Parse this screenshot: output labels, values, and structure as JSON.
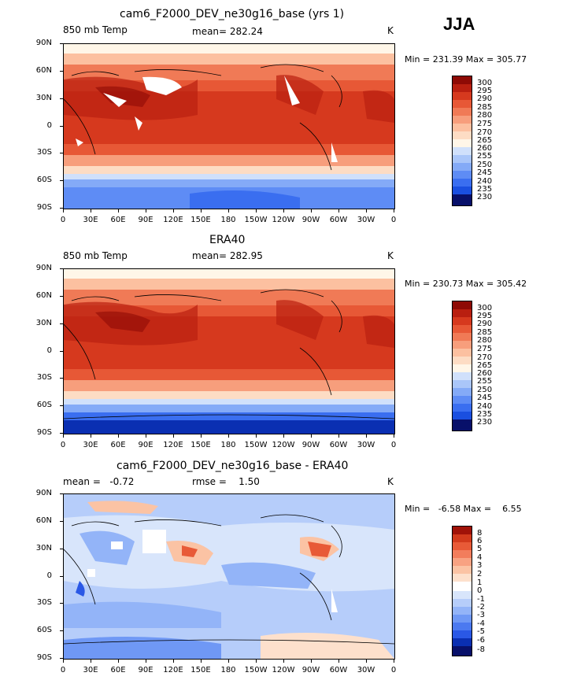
{
  "season": "JJA",
  "x_ticks": [
    "0",
    "30E",
    "60E",
    "90E",
    "120E",
    "150E",
    "180",
    "150W",
    "120W",
    "90W",
    "60W",
    "30W",
    "0"
  ],
  "y_ticks": [
    "90N",
    "60N",
    "30N",
    "0",
    "30S",
    "60S",
    "90S"
  ],
  "colors": {
    "temp": [
      "#08106a",
      "#0a2fb2",
      "#1a4fe0",
      "#3a6ef0",
      "#5e8cf5",
      "#84aaf7",
      "#aac6f9",
      "#d0e0fb",
      "#fff6e8",
      "#fddcc4",
      "#fcc0a0",
      "#f79e7c",
      "#f07a56",
      "#e75836",
      "#d6391e",
      "#b91f10",
      "#8e0a05"
    ],
    "diff": [
      "#08106a",
      "#0a2fb2",
      "#2a58e6",
      "#4b79f0",
      "#6f98f5",
      "#93b4f8",
      "#b6cdfa",
      "#d8e5fb",
      "#ffffff",
      "#fde0cc",
      "#fbc3a4",
      "#f8a282",
      "#f27d5c",
      "#e85a37",
      "#d23a1c",
      "#a01208"
    ]
  },
  "panels": [
    {
      "title": "cam6_F2000_DEV_ne30g16_base (yrs 1)",
      "left_label": "850 mb Temp",
      "center_label": "mean= 282.24",
      "right_label": "K",
      "minmax": "Min = 231.39 Max = 305.77",
      "colorbar_labels": [
        "300",
        "295",
        "290",
        "285",
        "280",
        "275",
        "270",
        "265",
        "260",
        "255",
        "250",
        "245",
        "240",
        "235",
        "230"
      ]
    },
    {
      "title": "ERA40",
      "left_label": "850 mb Temp",
      "center_label": "mean= 282.95",
      "right_label": "K",
      "minmax": "Min = 230.73 Max = 305.42",
      "colorbar_labels": [
        "300",
        "295",
        "290",
        "285",
        "280",
        "275",
        "270",
        "265",
        "260",
        "255",
        "250",
        "245",
        "240",
        "235",
        "230"
      ]
    },
    {
      "title": "cam6_F2000_DEV_ne30g16_base - ERA40",
      "left_label": "mean =   -0.72",
      "center_label": "rmse =    1.50",
      "right_label": "K",
      "minmax": "Min =   -6.58 Max =    6.55",
      "colorbar_labels": [
        "8",
        "6",
        "5",
        "4",
        "3",
        "2",
        "1",
        "0",
        "-1",
        "-2",
        "-3",
        "-4",
        "-5",
        "-6",
        "-8"
      ]
    }
  ]
}
